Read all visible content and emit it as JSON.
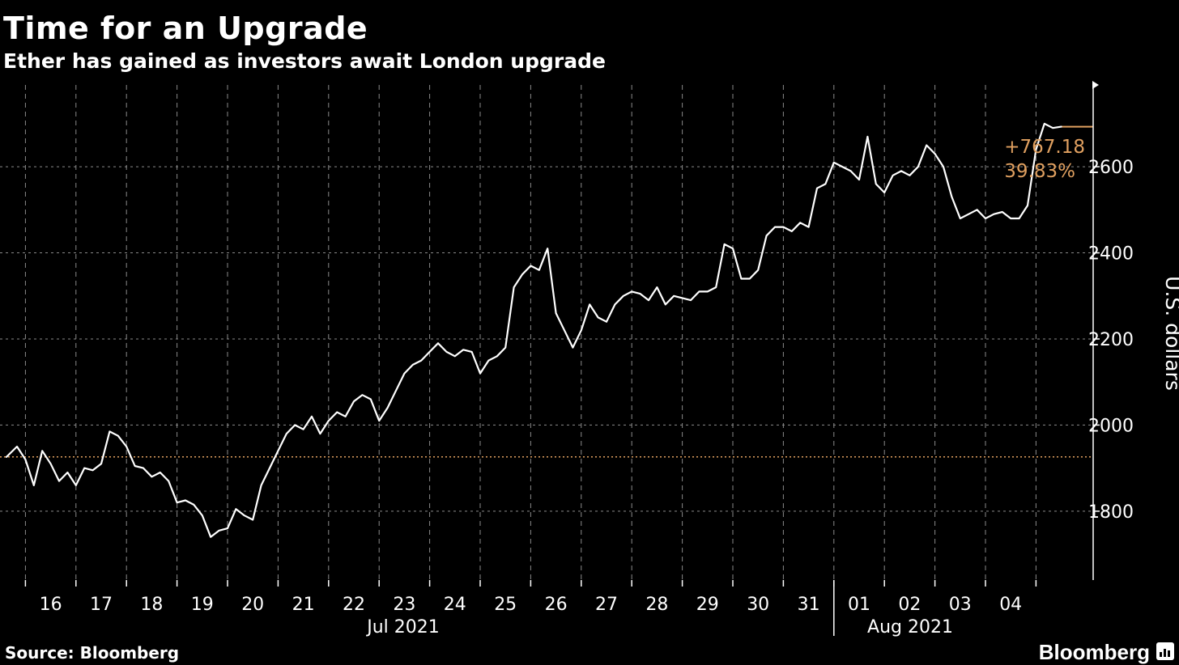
{
  "title": "Time for an Upgrade",
  "subtitle": "Ether has gained as investors await London upgrade",
  "source": "Source: Bloomberg",
  "brand": "Bloomberg",
  "colors": {
    "background": "#000000",
    "line": "#ffffff",
    "grid": "#8a8a8a",
    "accent": "#e0a060"
  },
  "chart_data": {
    "type": "line",
    "title": "Time for an Upgrade",
    "subtitle": "Ether has gained as investors await London upgrade",
    "ylabel": "U.S. dollars",
    "ylim": [
      1640,
      2790
    ],
    "yticks": [
      1800,
      2000,
      2200,
      2400,
      2600
    ],
    "grid": true,
    "x_tick_labels": [
      "16",
      "17",
      "18",
      "19",
      "20",
      "21",
      "22",
      "23",
      "24",
      "25",
      "26",
      "27",
      "28",
      "29",
      "30",
      "31",
      "01",
      "02",
      "03",
      "04"
    ],
    "month_labels": [
      "Jul 2021",
      "Aug 2021"
    ],
    "reference_value": 1926,
    "last_value": 2693,
    "annotation_change": "+767.18",
    "annotation_pct": "39.83%",
    "series": [
      {
        "x": [
          "2021-07-15T15:00",
          "2021-07-15T20:00",
          "2021-07-16T00:00",
          "2021-07-16T04:00",
          "2021-07-16T08:00",
          "2021-07-16T12:00",
          "2021-07-16T16:00",
          "2021-07-16T20:00",
          "2021-07-17T00:00",
          "2021-07-17T04:00",
          "2021-07-17T08:00",
          "2021-07-17T12:00",
          "2021-07-17T16:00",
          "2021-07-17T20:00",
          "2021-07-18T00:00",
          "2021-07-18T04:00",
          "2021-07-18T08:00",
          "2021-07-18T12:00",
          "2021-07-18T16:00",
          "2021-07-18T20:00",
          "2021-07-19T00:00",
          "2021-07-19T04:00",
          "2021-07-19T08:00",
          "2021-07-19T12:00",
          "2021-07-19T16:00",
          "2021-07-19T20:00",
          "2021-07-20T00:00",
          "2021-07-20T04:00",
          "2021-07-20T08:00",
          "2021-07-20T12:00",
          "2021-07-20T16:00",
          "2021-07-20T20:00",
          "2021-07-21T00:00",
          "2021-07-21T04:00",
          "2021-07-21T08:00",
          "2021-07-21T12:00",
          "2021-07-21T16:00",
          "2021-07-21T20:00",
          "2021-07-22T00:00",
          "2021-07-22T04:00",
          "2021-07-22T08:00",
          "2021-07-22T12:00",
          "2021-07-22T16:00",
          "2021-07-22T20:00",
          "2021-07-23T00:00",
          "2021-07-23T04:00",
          "2021-07-23T08:00",
          "2021-07-23T12:00",
          "2021-07-23T16:00",
          "2021-07-23T20:00",
          "2021-07-24T00:00",
          "2021-07-24T04:00",
          "2021-07-24T08:00",
          "2021-07-24T12:00",
          "2021-07-24T16:00",
          "2021-07-24T20:00",
          "2021-07-25T00:00",
          "2021-07-25T04:00",
          "2021-07-25T08:00",
          "2021-07-25T12:00",
          "2021-07-25T16:00",
          "2021-07-25T20:00",
          "2021-07-26T00:00",
          "2021-07-26T04:00",
          "2021-07-26T08:00",
          "2021-07-26T12:00",
          "2021-07-26T16:00",
          "2021-07-26T20:00",
          "2021-07-27T00:00",
          "2021-07-27T04:00",
          "2021-07-27T08:00",
          "2021-07-27T12:00",
          "2021-07-27T16:00",
          "2021-07-27T20:00",
          "2021-07-28T00:00",
          "2021-07-28T04:00",
          "2021-07-28T08:00",
          "2021-07-28T12:00",
          "2021-07-28T16:00",
          "2021-07-28T20:00",
          "2021-07-29T00:00",
          "2021-07-29T04:00",
          "2021-07-29T08:00",
          "2021-07-29T12:00",
          "2021-07-29T16:00",
          "2021-07-29T20:00",
          "2021-07-30T00:00",
          "2021-07-30T04:00",
          "2021-07-30T08:00",
          "2021-07-30T12:00",
          "2021-07-30T16:00",
          "2021-07-30T20:00",
          "2021-07-31T00:00",
          "2021-07-31T04:00",
          "2021-07-31T08:00",
          "2021-07-31T12:00",
          "2021-07-31T16:00",
          "2021-07-31T20:00",
          "2021-08-01T00:00",
          "2021-08-01T04:00",
          "2021-08-01T08:00",
          "2021-08-01T12:00",
          "2021-08-01T16:00",
          "2021-08-01T20:00",
          "2021-08-02T00:00",
          "2021-08-02T04:00",
          "2021-08-02T08:00",
          "2021-08-02T12:00",
          "2021-08-02T16:00",
          "2021-08-02T20:00",
          "2021-08-03T00:00",
          "2021-08-03T04:00",
          "2021-08-03T08:00",
          "2021-08-03T12:00",
          "2021-08-03T16:00",
          "2021-08-03T20:00",
          "2021-08-04T00:00",
          "2021-08-04T04:00",
          "2021-08-04T08:00",
          "2021-08-04T12:00",
          "2021-08-04T16:00",
          "2021-08-04T20:00",
          "2021-08-05T00:00",
          "2021-08-05T04:00",
          "2021-08-05T08:00",
          "2021-08-05T12:00"
        ],
        "values": [
          1926,
          1950,
          1920,
          1860,
          1940,
          1910,
          1870,
          1890,
          1860,
          1900,
          1895,
          1910,
          1985,
          1975,
          1950,
          1905,
          1900,
          1880,
          1890,
          1870,
          1820,
          1825,
          1815,
          1790,
          1740,
          1755,
          1760,
          1805,
          1790,
          1780,
          1860,
          1900,
          1940,
          1980,
          2000,
          1990,
          2020,
          1980,
          2010,
          2030,
          2020,
          2055,
          2070,
          2060,
          2010,
          2040,
          2080,
          2120,
          2140,
          2150,
          2170,
          2190,
          2170,
          2160,
          2175,
          2170,
          2120,
          2150,
          2160,
          2180,
          2320,
          2350,
          2370,
          2360,
          2410,
          2260,
          2220,
          2180,
          2220,
          2280,
          2250,
          2240,
          2280,
          2300,
          2310,
          2305,
          2290,
          2320,
          2280,
          2300,
          2295,
          2290,
          2310,
          2310,
          2320,
          2420,
          2410,
          2340,
          2340,
          2360,
          2440,
          2460,
          2460,
          2450,
          2470,
          2460,
          2550,
          2560,
          2610,
          2600,
          2590,
          2570,
          2670,
          2560,
          2540,
          2580,
          2590,
          2580,
          2600,
          2650,
          2630,
          2600,
          2530,
          2480,
          2490,
          2500,
          2480,
          2490,
          2495,
          2480,
          2480,
          2510,
          2640,
          2700,
          2690,
          2693
        ]
      }
    ]
  }
}
